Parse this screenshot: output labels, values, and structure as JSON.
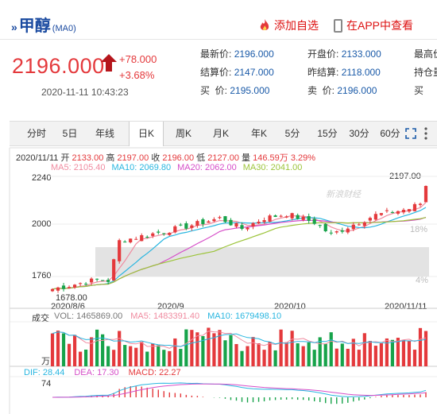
{
  "header": {
    "title_arrows": "»",
    "title": "甲醇",
    "code": "(MA0)",
    "add_watch": "添加自选",
    "app_view": "在APP中查看"
  },
  "quote": {
    "price": "2196.000",
    "change": "+78.000",
    "change_pct": "+3.68%",
    "time": "2020-11-11 10:43:23"
  },
  "stats": {
    "col1": [
      {
        "label": "最新价:",
        "value": "2196.000"
      },
      {
        "label": "结算价:",
        "value": "2147.000"
      },
      {
        "label": "买  价:",
        "value": "2195.000"
      }
    ],
    "col2": [
      {
        "label": "开盘价:",
        "value": "2133.000"
      },
      {
        "label": "昨结算:",
        "value": "2118.000"
      },
      {
        "label": "卖  价:",
        "value": "2196.000"
      }
    ],
    "col3": [
      {
        "label": "最高价"
      },
      {
        "label": "持仓量"
      },
      {
        "label": "买"
      }
    ]
  },
  "tabs": [
    "分时",
    "5日",
    "年线",
    "日K",
    "周K",
    "月K",
    "年K",
    "5分",
    "15分",
    "30分",
    "60分"
  ],
  "active_tab": "日K",
  "ohlc_line": {
    "date": "2020/11/11",
    "open_label": "开",
    "open": "2133.00",
    "high_label": "高",
    "high": "2197.00",
    "close_label": "收",
    "close": "2196.00",
    "low_label": "低",
    "low": "2127.00",
    "vol_label": "量",
    "vol": "146.59万",
    "pct": "3.29%"
  },
  "ma_legend": [
    {
      "text": "MA5: 2105.40",
      "color": "#f08ba0"
    },
    {
      "text": "MA10: 2069.80",
      "color": "#29b6e0"
    },
    {
      "text": "MA20: 2062.00",
      "color": "#d64ec8"
    },
    {
      "text": "MA30: 2041.00",
      "color": "#9cc43a"
    }
  ],
  "y_axis": [
    "2240",
    "2000",
    "1760"
  ],
  "pct_axis": [
    "18%",
    "4%"
  ],
  "annotations": {
    "max": "2197.00",
    "min": "1678.00"
  },
  "x_axis": [
    "2020/8/6",
    "2020/9",
    "2020/10",
    "2020/11/11"
  ],
  "watermark": "新浪财经",
  "volume": {
    "label": "成交",
    "unit": "万",
    "legend": [
      {
        "text": "VOL: 1465869.00",
        "color": "#777777"
      },
      {
        "text": "MA5: 1483391.40",
        "color": "#f08ba0"
      },
      {
        "text": "MA10: 1679498.10",
        "color": "#29b6e0"
      }
    ]
  },
  "macd": {
    "label": "MACD",
    "axis": "74",
    "legend": [
      {
        "text": "DIF: 28.44",
        "color": "#29b6e0"
      },
      {
        "text": "DEA: 17.30",
        "color": "#d64ec8"
      },
      {
        "text": "MACD: 22.27",
        "color": "#e4393c"
      }
    ]
  },
  "colors": {
    "up": "#e4393c",
    "down": "#17a34a",
    "accent": "#1a4aa0"
  }
}
